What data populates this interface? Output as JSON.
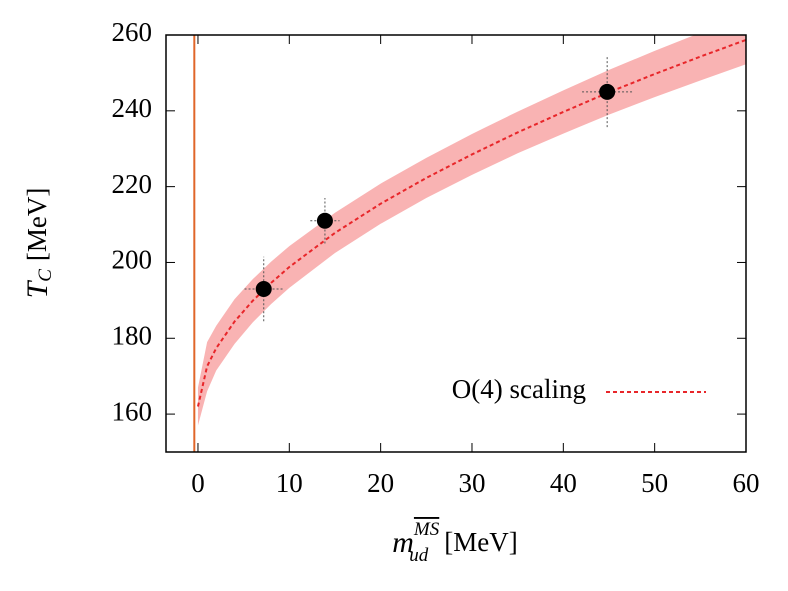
{
  "chart_data": {
    "type": "errorbar",
    "xlabel": {
      "symbol": "m",
      "sub": "ud",
      "sup": "MS",
      "unit": "[MeV]"
    },
    "ylabel": {
      "symbol": "T",
      "sub": "C",
      "unit": "[MeV]"
    },
    "xlim": [
      -3.5,
      60
    ],
    "xticks": [
      0,
      10,
      20,
      30,
      40,
      50,
      60
    ],
    "ylim": [
      150,
      260
    ],
    "yticks": [
      160,
      180,
      200,
      220,
      240,
      260
    ],
    "points": {
      "color": "#000000",
      "x": [
        7.2,
        13.9,
        44.8
      ],
      "y": [
        193,
        211,
        245
      ],
      "xerr": [
        2.1,
        1.6,
        2.75
      ],
      "yerr": [
        8.5,
        6,
        9.3
      ]
    },
    "fit": {
      "name": "O(4) scaling",
      "color": "#e8262a",
      "x": [
        0,
        1,
        2,
        4,
        6,
        8,
        10,
        15,
        20,
        25,
        30,
        35,
        40,
        45,
        50,
        55,
        60
      ],
      "values": [
        162,
        172.6,
        177.4,
        184.4,
        189.9,
        194.6,
        198.8,
        207.8,
        215.5,
        222.3,
        228.5,
        234.3,
        239.7,
        244.9,
        249.7,
        254.3,
        258.7
      ],
      "band_color": "#f7a0a0",
      "lower": [
        157,
        166,
        171.5,
        178.5,
        184.2,
        189,
        193.3,
        202.5,
        210.2,
        217,
        223.1,
        228.8,
        234,
        239,
        243.6,
        248,
        252.3
      ],
      "upper": [
        167,
        179,
        183.3,
        190.3,
        195.6,
        200.2,
        204.3,
        213.1,
        220.8,
        227.6,
        233.9,
        239.8,
        245.4,
        250.8,
        255.8,
        260.6,
        265.1
      ]
    },
    "vline": {
      "x": -0.4,
      "color": "#e0662a"
    },
    "legend": "lower right"
  }
}
